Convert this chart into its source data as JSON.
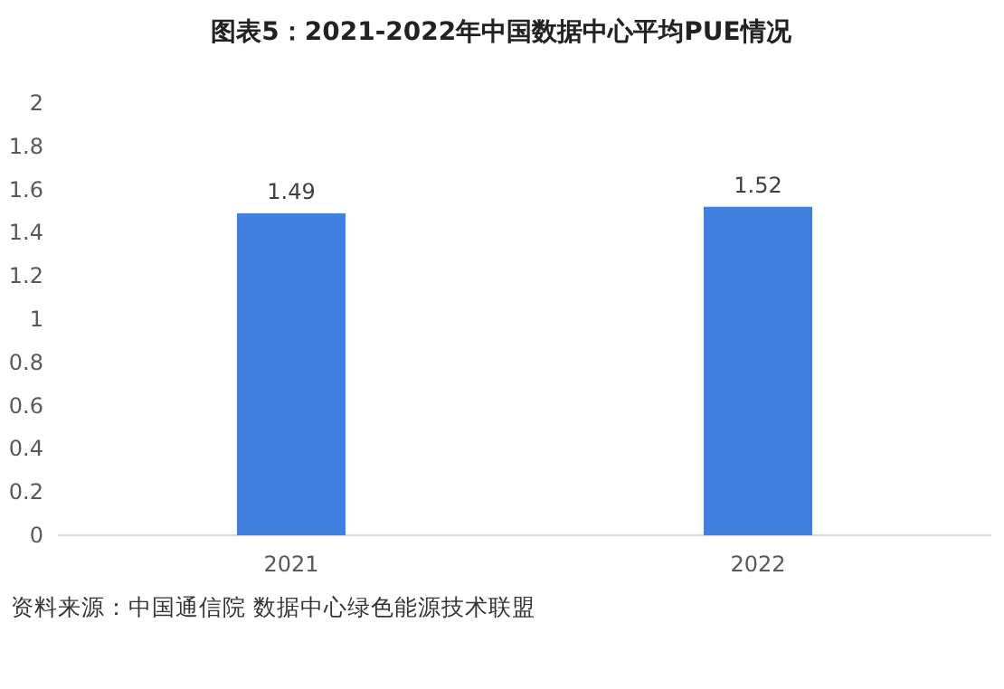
{
  "chart_data": {
    "type": "bar",
    "title": "图表5：2021-2022年中国数据中心平均PUE情况",
    "categories": [
      "2021",
      "2022"
    ],
    "values": [
      1.49,
      1.52
    ],
    "color": "#3f80e0",
    "ylim": [
      0,
      2
    ],
    "yticks": [
      0,
      0.2,
      0.4,
      0.6,
      0.8,
      1,
      1.2,
      1.4,
      1.6,
      1.8,
      2
    ],
    "data_labels": true,
    "annotations": [
      "资料来源：中国通信院 数据中心绿色能源技术联盟"
    ]
  }
}
